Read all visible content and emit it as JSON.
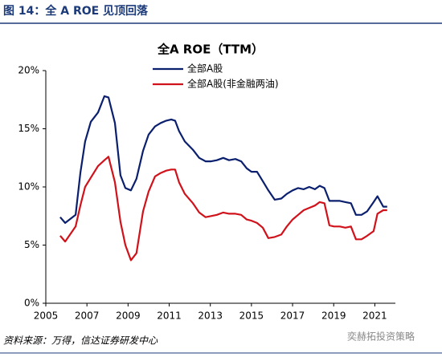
{
  "header": "图 14：全 A ROE 见顶回落",
  "source": "资料来源：万得，信达证券研发中心",
  "watermark": "奕赫拓投资策略",
  "chart_data": {
    "type": "line",
    "title": "全A ROE（TTM）",
    "x": [
      2005.7,
      2005.94,
      2006.45,
      2006.68,
      2006.91,
      2007.19,
      2007.54,
      2007.85,
      2008.05,
      2008.36,
      2008.63,
      2008.87,
      2009.14,
      2009.41,
      2009.73,
      2010.0,
      2010.31,
      2010.59,
      2010.86,
      2011.1,
      2011.29,
      2011.48,
      2011.76,
      2012.15,
      2012.46,
      2012.77,
      2013.04,
      2013.32,
      2013.63,
      2013.91,
      2014.22,
      2014.5,
      2014.77,
      2015.0,
      2015.27,
      2015.55,
      2015.82,
      2016.13,
      2016.45,
      2016.72,
      2017.0,
      2017.27,
      2017.54,
      2017.81,
      2018.09,
      2018.32,
      2018.55,
      2018.79,
      2019.02,
      2019.3,
      2019.57,
      2019.84,
      2020.08,
      2020.35,
      2020.63,
      2020.94,
      2021.13,
      2021.41,
      2021.6
    ],
    "series": [
      {
        "name": "全部A股",
        "color": "#0a1f6e",
        "values": [
          7.4,
          6.9,
          7.6,
          11.2,
          13.9,
          15.6,
          16.4,
          17.8,
          17.7,
          15.5,
          11.0,
          9.9,
          9.7,
          10.7,
          13.1,
          14.5,
          15.2,
          15.5,
          15.7,
          15.8,
          15.7,
          14.8,
          13.9,
          13.2,
          12.5,
          12.2,
          12.2,
          12.3,
          12.5,
          12.3,
          12.4,
          12.2,
          11.6,
          11.3,
          11.3,
          10.5,
          9.7,
          8.9,
          9.0,
          9.4,
          9.7,
          9.9,
          9.8,
          10.0,
          9.8,
          10.1,
          9.9,
          8.8,
          8.8,
          8.8,
          8.7,
          8.6,
          7.6,
          7.6,
          7.9,
          8.7,
          9.2,
          8.3,
          8.3
        ]
      },
      {
        "name": "全部A股(非金融两油)",
        "color": "#d0121b",
        "values": [
          5.8,
          5.3,
          6.6,
          8.4,
          10.0,
          10.8,
          11.8,
          12.3,
          12.6,
          10.4,
          7.0,
          5.0,
          3.7,
          4.3,
          7.9,
          9.6,
          10.9,
          11.2,
          11.4,
          11.5,
          11.5,
          10.4,
          9.4,
          8.6,
          7.8,
          7.4,
          7.5,
          7.6,
          7.8,
          7.7,
          7.7,
          7.6,
          7.2,
          7.1,
          6.9,
          6.5,
          5.6,
          5.7,
          5.9,
          6.6,
          7.2,
          7.6,
          8.0,
          8.2,
          8.4,
          8.7,
          8.6,
          6.7,
          6.6,
          6.6,
          6.5,
          6.6,
          5.5,
          5.5,
          5.8,
          6.2,
          7.7,
          8.0,
          8.0
        ]
      }
    ],
    "xlim": [
      2005,
      2022
    ],
    "xticks": [
      2005,
      2007,
      2009,
      2011,
      2013,
      2015,
      2017,
      2019,
      2021
    ],
    "ylim": [
      0,
      20
    ],
    "yticks": [
      {
        "value": 0,
        "label": "0%"
      },
      {
        "value": 5,
        "label": "5%"
      },
      {
        "value": 10,
        "label": "10%"
      },
      {
        "value": 15,
        "label": "15%"
      },
      {
        "value": 20,
        "label": "20%"
      }
    ],
    "grid": false
  }
}
